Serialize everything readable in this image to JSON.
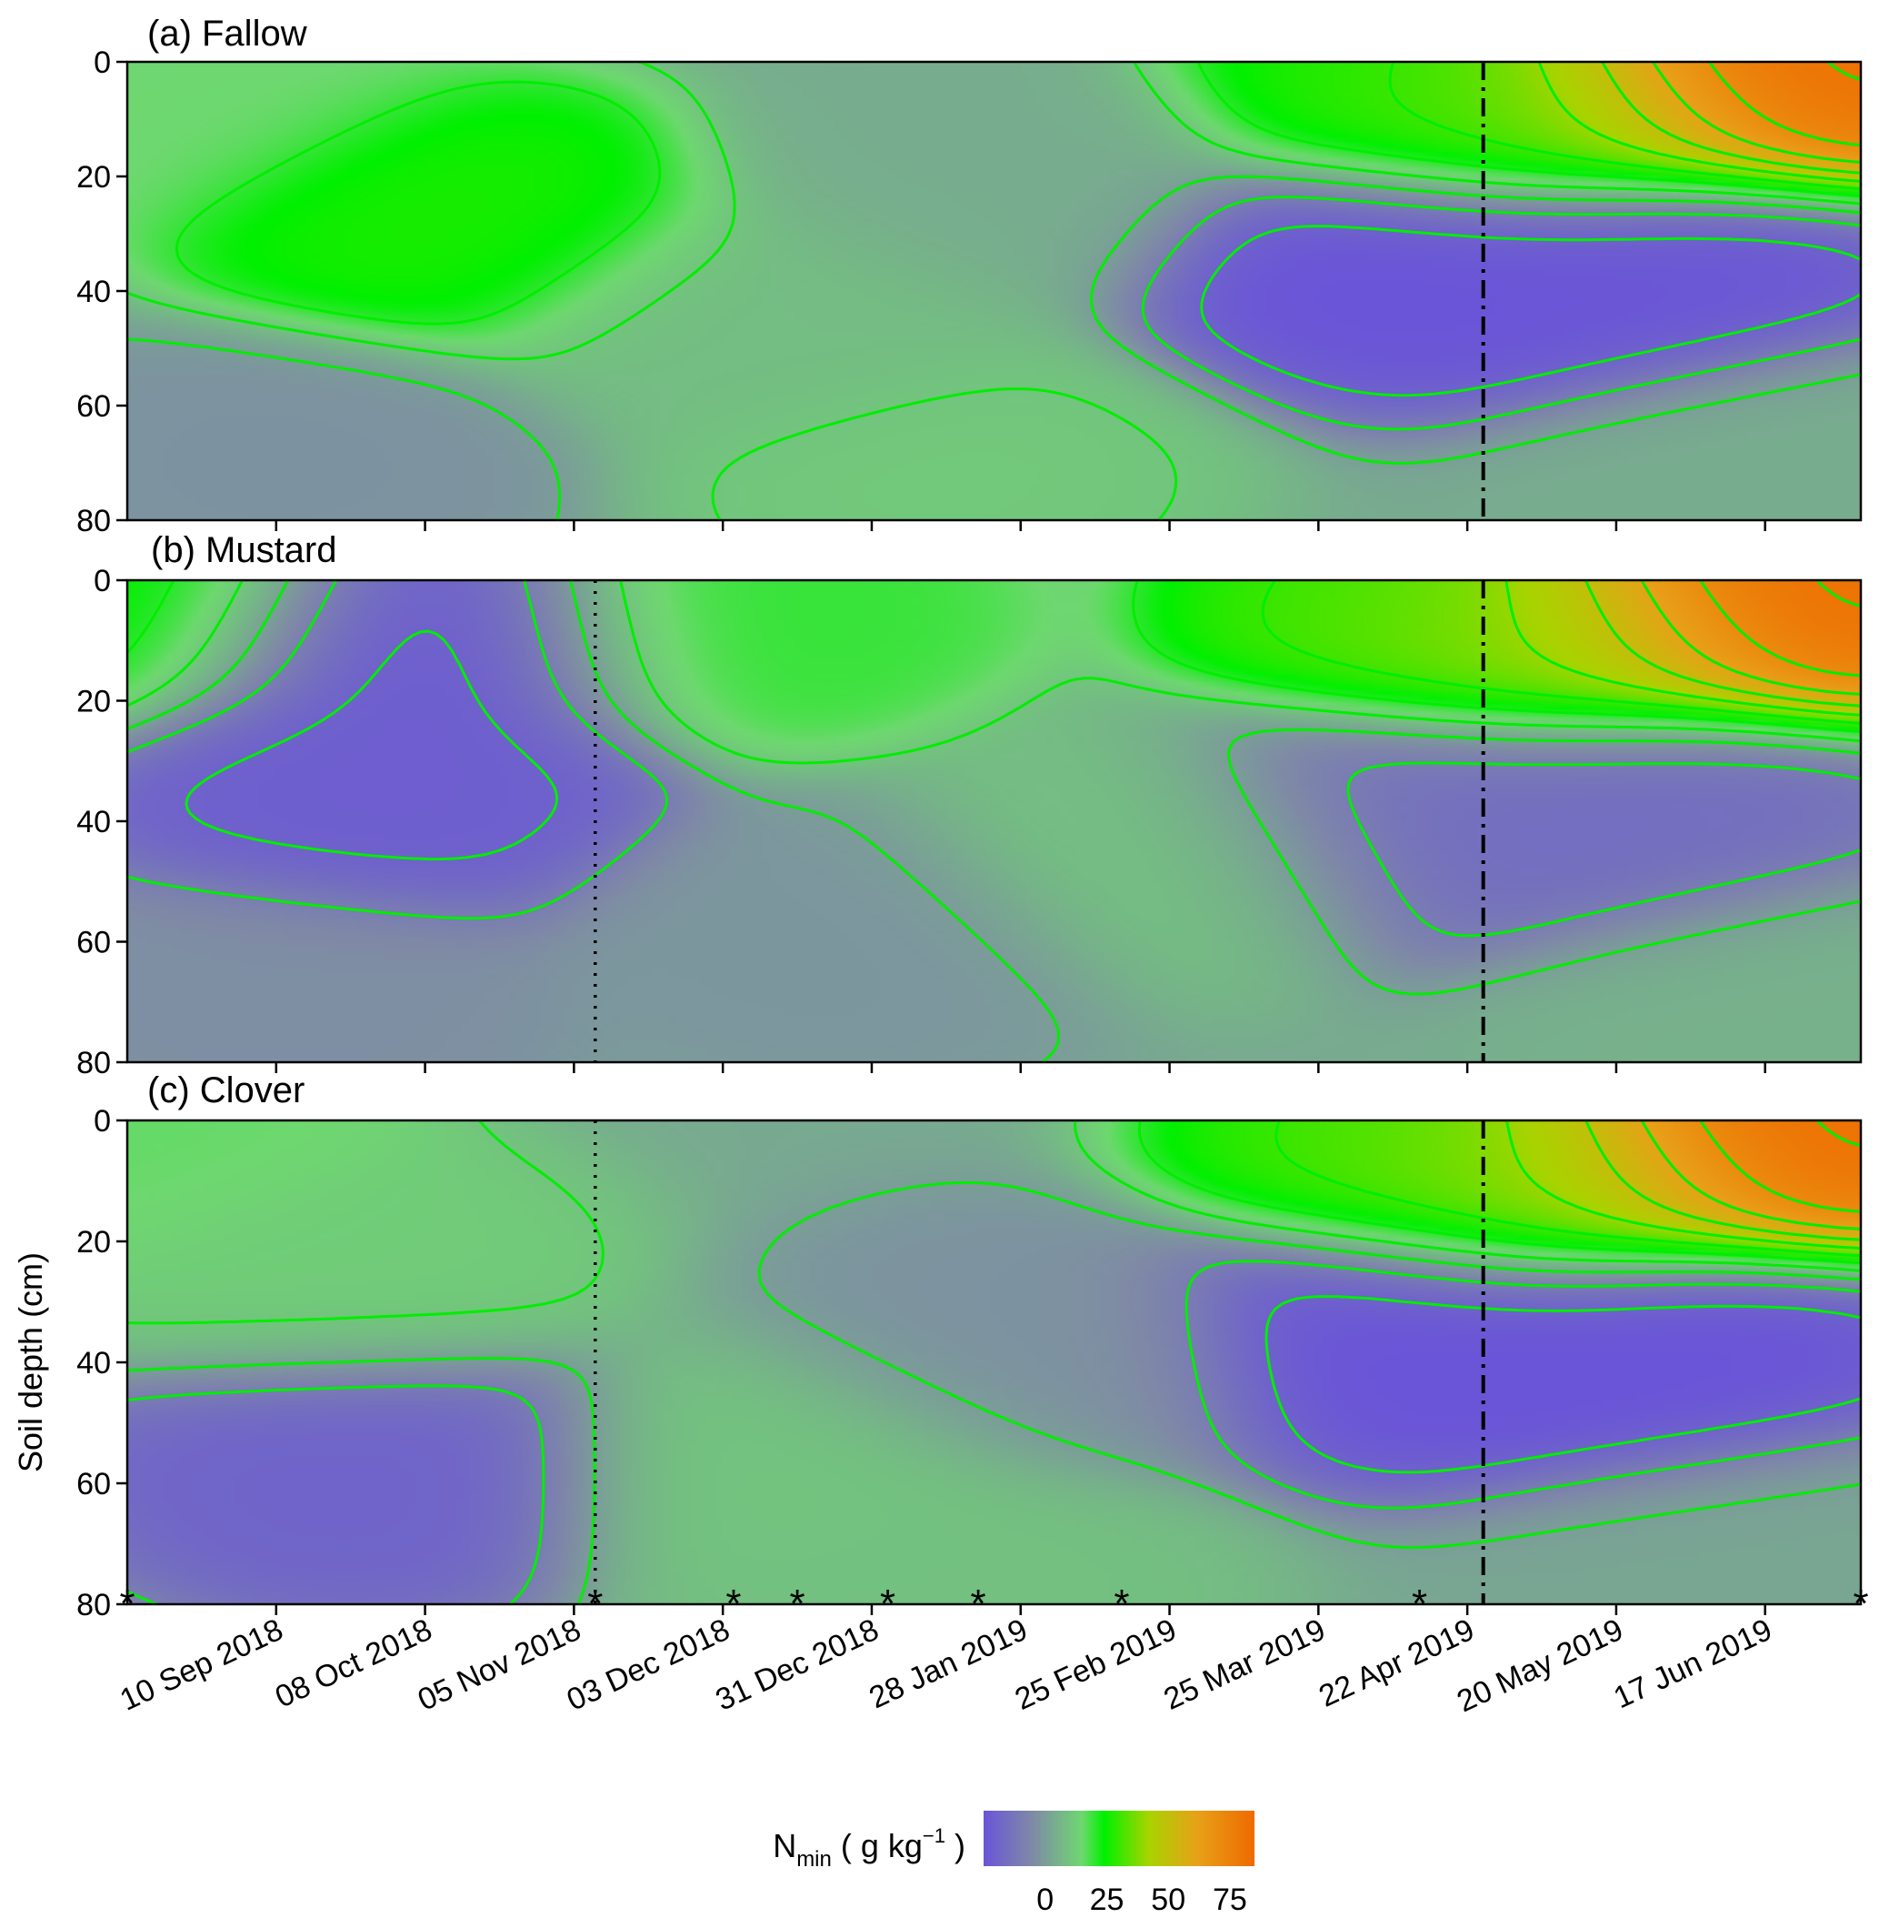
{
  "chart_data": {
    "type": "heatmap",
    "ylabel": "Soil depth (cm)",
    "ylim": [
      80,
      0
    ],
    "yticks": [
      "0",
      "20",
      "40",
      "60",
      "80"
    ],
    "xlim": [
      "2018-08-13",
      "2019-07-05"
    ],
    "xticks": [
      {
        "date": "2018-09-10",
        "label": "10 Sep 2018"
      },
      {
        "date": "2018-10-08",
        "label": "08 Oct 2018"
      },
      {
        "date": "2018-11-05",
        "label": "05 Nov 2018"
      },
      {
        "date": "2018-12-03",
        "label": "03 Dec 2018"
      },
      {
        "date": "2018-12-31",
        "label": "31 Dec 2018"
      },
      {
        "date": "2019-01-28",
        "label": "28 Jan 2019"
      },
      {
        "date": "2019-02-25",
        "label": "25 Feb 2019"
      },
      {
        "date": "2019-03-25",
        "label": "25 Mar 2019"
      },
      {
        "date": "2019-04-22",
        "label": "22 Apr 2019"
      },
      {
        "date": "2019-05-20",
        "label": "20 May 2019"
      },
      {
        "date": "2019-06-17",
        "label": "17 Jun 2019"
      }
    ],
    "colorbar": {
      "label_main": "N",
      "label_sub": "min",
      "label_open": " ( g kg",
      "label_sup": "−1",
      "label_close": " )",
      "ticks": [
        "0",
        "25",
        "50",
        "75"
      ],
      "tick_values": [
        0,
        25,
        50,
        75
      ],
      "range": [
        -25,
        85
      ],
      "colors": [
        "#6a55d8",
        "#7f8aa6",
        "#6ed870",
        "#00f000",
        "#a8d400",
        "#e8a018",
        "#ee6a00"
      ],
      "color_stops": [
        -25,
        -5,
        15,
        24,
        42,
        62,
        85
      ]
    },
    "sampling_dates": [
      "2018-08-13",
      "2018-11-09",
      "2018-12-05",
      "2018-12-17",
      "2019-01-03",
      "2019-01-20",
      "2019-02-16",
      "2019-04-13",
      "2019-07-05"
    ],
    "panels": [
      {
        "title": "(a) Fallow",
        "cover_crop_termination": null,
        "planting_date": "2019-04-25",
        "features": [
          {
            "date": "2018-10-13",
            "depth": 27,
            "value": 27
          },
          {
            "date": "2018-08-20",
            "depth": 5,
            "value": 15
          },
          {
            "date": "2018-12-10",
            "depth": 45,
            "value": 8
          },
          {
            "date": "2019-01-20",
            "depth": 20,
            "value": 4
          },
          {
            "date": "2019-01-12",
            "depth": 72,
            "value": 11
          },
          {
            "date": "2018-09-10",
            "depth": 70,
            "value": -3
          },
          {
            "date": "2019-04-13",
            "depth": 35,
            "value": -26
          },
          {
            "date": "2019-05-22",
            "depth": 38,
            "value": -25
          },
          {
            "date": "2019-06-12",
            "depth": 0,
            "value": 85
          },
          {
            "date": "2019-05-05",
            "depth": 8,
            "value": 40
          },
          {
            "date": "2019-04-20",
            "depth": 4,
            "value": 25
          },
          {
            "date": "2019-06-20",
            "depth": 70,
            "value": 4
          }
        ]
      },
      {
        "title": "(b) Mustard",
        "cover_crop_termination": "2018-11-09",
        "planting_date": "2019-04-25",
        "features": [
          {
            "date": "2018-08-13",
            "depth": 2,
            "value": 26
          },
          {
            "date": "2018-10-05",
            "depth": 8,
            "value": -24
          },
          {
            "date": "2018-09-28",
            "depth": 35,
            "value": -22
          },
          {
            "date": "2018-12-05",
            "depth": 5,
            "value": 20
          },
          {
            "date": "2019-02-25",
            "depth": 45,
            "value": 9
          },
          {
            "date": "2018-12-25",
            "depth": 60,
            "value": -2
          },
          {
            "date": "2018-09-10",
            "depth": 70,
            "value": -4
          },
          {
            "date": "2019-04-15",
            "depth": 38,
            "value": -16
          },
          {
            "date": "2019-05-20",
            "depth": 40,
            "value": -16
          },
          {
            "date": "2019-06-12",
            "depth": 0,
            "value": 85
          },
          {
            "date": "2019-05-05",
            "depth": 8,
            "value": 45
          },
          {
            "date": "2019-04-20",
            "depth": 4,
            "value": 28
          },
          {
            "date": "2019-06-15",
            "depth": 70,
            "value": 5
          }
        ]
      },
      {
        "title": "(c) Clover",
        "cover_crop_termination": "2018-11-09",
        "planting_date": "2019-04-25",
        "features": [
          {
            "date": "2018-08-13",
            "depth": 3,
            "value": 16
          },
          {
            "date": "2018-09-20",
            "depth": 25,
            "value": 12
          },
          {
            "date": "2018-09-25",
            "depth": 58,
            "value": -20
          },
          {
            "date": "2018-12-15",
            "depth": 58,
            "value": 10
          },
          {
            "date": "2019-01-15",
            "depth": 78,
            "value": 9
          },
          {
            "date": "2019-01-28",
            "depth": 38,
            "value": -3
          },
          {
            "date": "2019-04-12",
            "depth": 35,
            "value": -26
          },
          {
            "date": "2019-05-25",
            "depth": 40,
            "value": -26
          },
          {
            "date": "2019-06-12",
            "depth": 0,
            "value": 85
          },
          {
            "date": "2019-05-05",
            "depth": 8,
            "value": 45
          },
          {
            "date": "2019-04-20",
            "depth": 4,
            "value": 28
          },
          {
            "date": "2019-06-15",
            "depth": 72,
            "value": 2
          }
        ]
      }
    ]
  }
}
